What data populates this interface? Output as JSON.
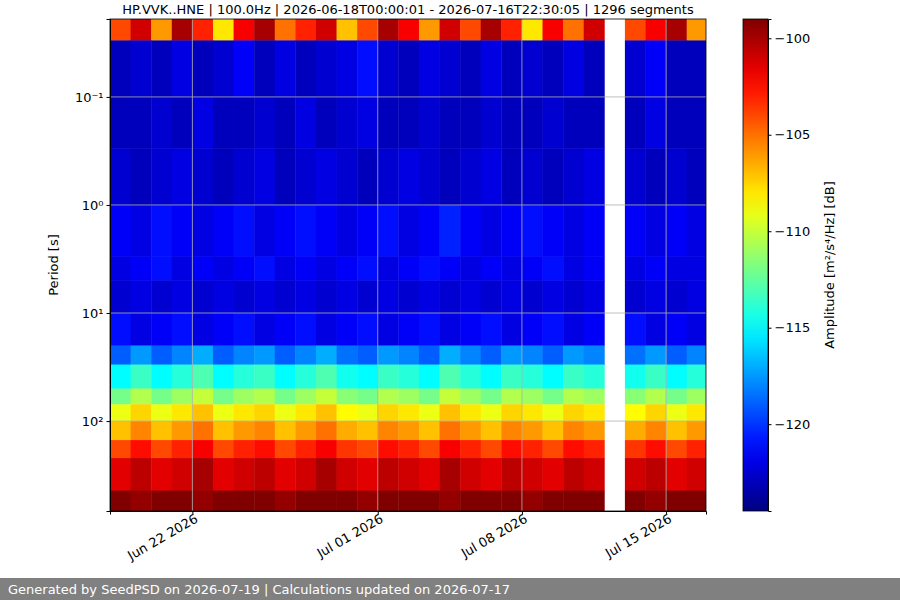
{
  "chart_data": {
    "type": "heatmap",
    "title": "HP.VVK..HNE | 100.0Hz | 2026-06-18T00:00:01 - 2026-07-16T22:30:05 | 1296 segments",
    "y_label": "Period [s]",
    "footer": "Generated by SeedPSD on 2026-07-19 | Calculations updated on 2026-07-17",
    "log": "y",
    "grid": true,
    "xlim": [
      "2026-06-18T00:00:01",
      "2026-07-16T22:30:05"
    ],
    "xticks": [
      {
        "value": "2026-06-22",
        "label": "Jun 22 2026"
      },
      {
        "value": "2026-07-01",
        "label": "Jul 01 2026"
      },
      {
        "value": "2026-07-08",
        "label": "Jul 08 2026"
      },
      {
        "value": "2026-07-15",
        "label": "Jul 15 2026"
      }
    ],
    "ylim": [
      0.019,
      680
    ],
    "yticks": [
      {
        "value": 0.1,
        "label": "10⁻¹"
      },
      {
        "value": 1,
        "label": "10⁰"
      },
      {
        "value": 10,
        "label": "10¹"
      },
      {
        "value": 100,
        "label": "10²"
      }
    ],
    "x": [
      "2026-06-18T00:00:01",
      "2026-06-19",
      "2026-06-20",
      "2026-06-21",
      "2026-06-22",
      "2026-06-23",
      "2026-06-24",
      "2026-06-25",
      "2026-06-26",
      "2026-06-27",
      "2026-06-28",
      "2026-06-29",
      "2026-06-30",
      "2026-07-01",
      "2026-07-02",
      "2026-07-03",
      "2026-07-04",
      "2026-07-05",
      "2026-07-06",
      "2026-07-07",
      "2026-07-08",
      "2026-07-09",
      "2026-07-10",
      "2026-07-11",
      "2026-07-12",
      "2026-07-13",
      "2026-07-14",
      "2026-07-15",
      "2026-07-16",
      "2026-07-16T22:30:05"
    ],
    "y": [
      0.019,
      0.03,
      0.1,
      0.3,
      1,
      3,
      5,
      10,
      20,
      30,
      50,
      70,
      100,
      150,
      220,
      440,
      680
    ],
    "values": [
      [
        -104,
        -101,
        -106,
        -100,
        -103,
        -108,
        -102,
        -100,
        -105,
        -103,
        -101,
        -107,
        -104,
        -100,
        -102,
        -106,
        -101,
        -104,
        -100,
        -103,
        -108,
        -102,
        -105,
        -101,
        null,
        -104,
        -102,
        -100,
        -106
      ],
      [
        -123,
        -122.5,
        -123,
        -122,
        -123,
        -122.5,
        -121.5,
        -123,
        -122,
        -123,
        -122.5,
        -122,
        -121,
        -122.5,
        -123,
        -122,
        -122.5,
        -123,
        -122,
        -123,
        -122.5,
        -123,
        -122,
        -123,
        null,
        -122.5,
        -121.5,
        -123,
        -123
      ],
      [
        -123,
        -123,
        -122.5,
        -123,
        -122,
        -123,
        -123,
        -122.5,
        -123,
        -122,
        -123,
        -122.5,
        -122,
        -123,
        -123,
        -122.5,
        -123,
        -123,
        -122.5,
        -123,
        -123,
        -122.5,
        -123,
        -123,
        null,
        -123,
        -122,
        -123,
        -123
      ],
      [
        -122.5,
        -123,
        -122.5,
        -122,
        -122.5,
        -123,
        -122.5,
        -122,
        -123,
        -122.5,
        -122,
        -122.5,
        -123,
        -122.5,
        -122,
        -122.5,
        -123,
        -122.5,
        -122,
        -123,
        -122.5,
        -123,
        -122.5,
        -122,
        null,
        -122.5,
        -123,
        -122.5,
        -123
      ],
      [
        -121.5,
        -122,
        -121,
        -121.5,
        -122,
        -121.5,
        -121,
        -122,
        -121.5,
        -121,
        -121.5,
        -122,
        -121.5,
        -121,
        -122,
        -121.5,
        -120.5,
        -121.5,
        -122,
        -121.5,
        -121,
        -121.5,
        -122,
        -121.5,
        null,
        -121.5,
        -122,
        -121.5,
        -122
      ],
      [
        -122,
        -121.5,
        -121,
        -122,
        -121.5,
        -122,
        -121.5,
        -121,
        -122,
        -121.5,
        -122,
        -121.5,
        -121,
        -122,
        -121.5,
        -121,
        -121.5,
        -122,
        -121.5,
        -122,
        -121.5,
        -121,
        -122,
        -121.5,
        null,
        -122,
        -121.5,
        -122,
        -122
      ],
      [
        -122.5,
        -122,
        -122.5,
        -122,
        -122.5,
        -122,
        -122.5,
        -122,
        -122.5,
        -122,
        -122.5,
        -122,
        -122.5,
        -122,
        -122.5,
        -122,
        -122.5,
        -122,
        -122.5,
        -122,
        -122.5,
        -122,
        -122.5,
        -122,
        null,
        -122.5,
        -122,
        -122.5,
        -122
      ],
      [
        -121,
        -122,
        -121.5,
        -121,
        -122,
        -121.5,
        -121,
        -122,
        -121.5,
        -121,
        -122,
        -121.5,
        -121,
        -122,
        -121.5,
        -121,
        -122,
        -121.5,
        -121,
        -122,
        -121.5,
        -121,
        -122,
        -121.5,
        null,
        -121,
        -122,
        -121.5,
        -122
      ],
      [
        -119,
        -117.5,
        -119,
        -118,
        -117,
        -119,
        -118,
        -117.5,
        -119,
        -118,
        -117,
        -118.5,
        -119,
        -117.5,
        -118,
        -119,
        -117,
        -118,
        -119,
        -117.5,
        -118,
        -119,
        -117.5,
        -118,
        null,
        -118.5,
        -117.5,
        -119,
        -118
      ],
      [
        -115,
        -113.5,
        -115,
        -114,
        -113,
        -115,
        -114,
        -113.5,
        -115,
        -114,
        -113,
        -114.5,
        -115,
        -113.5,
        -114,
        -115,
        -113,
        -114,
        -115,
        -113.5,
        -114,
        -115,
        -113.5,
        -114,
        null,
        -114.5,
        -113.5,
        -115,
        -114
      ],
      [
        -112,
        -110.5,
        -112,
        -111,
        -110,
        -112,
        -111,
        -110.5,
        -112,
        -111,
        -110,
        -111.5,
        -112,
        -110.5,
        -111,
        -112,
        -110,
        -111,
        -112,
        -110.5,
        -111,
        -112,
        -110.5,
        -111,
        null,
        -111.5,
        -110.5,
        -112,
        -111
      ],
      [
        -109,
        -107.5,
        -109,
        -108,
        -107,
        -109,
        -108,
        -107.5,
        -109,
        -108,
        -107,
        -108.5,
        -109,
        -107.5,
        -108,
        -109,
        -107,
        -108,
        -109,
        -107.5,
        -108,
        -109,
        -107.5,
        -108,
        null,
        -108.5,
        -107.5,
        -109,
        -108
      ],
      [
        -107,
        -105.5,
        -107,
        -106,
        -105,
        -107,
        -106,
        -105.5,
        -107,
        -106,
        -105,
        -106.5,
        -107,
        -105.5,
        -106,
        -107,
        -105,
        -106,
        -107,
        -105.5,
        -106,
        -107,
        -105.5,
        -106,
        null,
        -106.5,
        -105.5,
        -107,
        -106
      ],
      [
        -104,
        -102.5,
        -104,
        -103,
        -102,
        -104,
        -103,
        -102.5,
        -104,
        -103,
        -102,
        -103.5,
        -104,
        -102.5,
        -103,
        -104,
        -102,
        -103,
        -104,
        -102.5,
        -103,
        -104,
        -102.5,
        -103,
        null,
        -103.5,
        -102.5,
        -104,
        -103
      ],
      [
        -101.5,
        -100.5,
        -101.5,
        -101,
        -100,
        -101.5,
        -101,
        -100.5,
        -101.5,
        -101,
        -100,
        -101,
        -101.5,
        -100.5,
        -101,
        -101.5,
        -100,
        -101,
        -101.5,
        -100.5,
        -101,
        -101.5,
        -100.5,
        -101,
        null,
        -101,
        -100.5,
        -101.5,
        -101
      ],
      [
        -99,
        -99.5,
        -99,
        -99,
        -99.5,
        -99,
        -99,
        -99,
        -99.5,
        -99,
        -99,
        -99,
        -99.5,
        -99,
        -99,
        -99,
        -99.5,
        -99,
        -99,
        -99,
        -99.5,
        -99,
        -99,
        -99,
        null,
        -99,
        -99.5,
        -99,
        -99
      ]
    ],
    "colorbar": {
      "label": "Amplitude [m²/s⁴/Hz] [dB]",
      "range": [
        -124.5,
        -99
      ],
      "ticks": [
        {
          "value": -100,
          "label": "−100"
        },
        {
          "value": -105,
          "label": "−105"
        },
        {
          "value": -110,
          "label": "−110"
        },
        {
          "value": -115,
          "label": "−115"
        },
        {
          "value": -120,
          "label": "−120"
        }
      ]
    }
  }
}
